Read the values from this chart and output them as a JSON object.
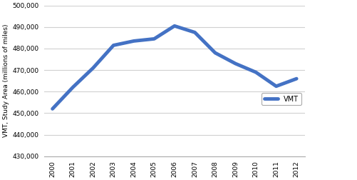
{
  "years": [
    2000,
    2001,
    2002,
    2003,
    2004,
    2005,
    2006,
    2007,
    2008,
    2009,
    2010,
    2011,
    2012
  ],
  "vmt": [
    452000,
    462000,
    471000,
    481500,
    483500,
    484500,
    490500,
    487500,
    478000,
    473000,
    469000,
    462500,
    466000
  ],
  "line_color": "#4472C4",
  "line_width": 3.5,
  "ylabel": "VMT, Study Area (millions of miles)",
  "legend_label": "VMT",
  "ylim": [
    430000,
    500000
  ],
  "ytick_step": 10000,
  "background_color": "#ffffff",
  "grid_color": "#d0d0d0"
}
